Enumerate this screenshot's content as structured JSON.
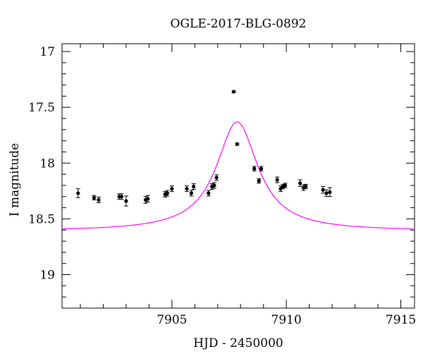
{
  "chart_data": {
    "type": "scatter",
    "title": "OGLE-2017-BLG-0892",
    "xlabel": "HJD - 2450000",
    "ylabel": "I magnitude",
    "xlim": [
      7900.2,
      7915.6
    ],
    "ylim": [
      19.3,
      16.93
    ],
    "y_inverted": true,
    "grid": false,
    "x_major_ticks": [
      7905,
      7910,
      7915
    ],
    "x_tick_labels": [
      "7905",
      "7910",
      "7915"
    ],
    "y_major_ticks": [
      17,
      17.5,
      18,
      18.5,
      19
    ],
    "y_tick_labels": [
      "17",
      "17.5",
      "18",
      "18.5",
      "19"
    ],
    "series": [
      {
        "type": "scatter_errorbars",
        "color": "#000000",
        "points": [
          {
            "x": 7900.9,
            "y": 18.27,
            "err": 0.04
          },
          {
            "x": 7901.6,
            "y": 18.31,
            "err": 0.02
          },
          {
            "x": 7901.8,
            "y": 18.33,
            "err": 0.025
          },
          {
            "x": 7902.7,
            "y": 18.3,
            "err": 0.025
          },
          {
            "x": 7902.8,
            "y": 18.3,
            "err": 0.025
          },
          {
            "x": 7903.0,
            "y": 18.34,
            "err": 0.045
          },
          {
            "x": 7903.85,
            "y": 18.33,
            "err": 0.03
          },
          {
            "x": 7903.95,
            "y": 18.32,
            "err": 0.03
          },
          {
            "x": 7904.7,
            "y": 18.28,
            "err": 0.025
          },
          {
            "x": 7904.8,
            "y": 18.27,
            "err": 0.025
          },
          {
            "x": 7905.0,
            "y": 18.23,
            "err": 0.025
          },
          {
            "x": 7905.65,
            "y": 18.23,
            "err": 0.025
          },
          {
            "x": 7905.85,
            "y": 18.27,
            "err": 0.025
          },
          {
            "x": 7905.95,
            "y": 18.21,
            "err": 0.025
          },
          {
            "x": 7906.6,
            "y": 18.27,
            "err": 0.025
          },
          {
            "x": 7906.75,
            "y": 18.21,
            "err": 0.025
          },
          {
            "x": 7906.85,
            "y": 18.2,
            "err": 0.025
          },
          {
            "x": 7906.95,
            "y": 18.13,
            "err": 0.025
          },
          {
            "x": 7907.7,
            "y": 17.36,
            "err": 0.008
          },
          {
            "x": 7907.85,
            "y": 17.83,
            "err": 0.01
          },
          {
            "x": 7908.6,
            "y": 18.05,
            "err": 0.02
          },
          {
            "x": 7908.8,
            "y": 18.16,
            "err": 0.02
          },
          {
            "x": 7908.9,
            "y": 18.05,
            "err": 0.02
          },
          {
            "x": 7909.6,
            "y": 18.15,
            "err": 0.025
          },
          {
            "x": 7909.75,
            "y": 18.23,
            "err": 0.025
          },
          {
            "x": 7909.85,
            "y": 18.21,
            "err": 0.02
          },
          {
            "x": 7909.95,
            "y": 18.2,
            "err": 0.02
          },
          {
            "x": 7910.6,
            "y": 18.18,
            "err": 0.03
          },
          {
            "x": 7910.75,
            "y": 18.22,
            "err": 0.025
          },
          {
            "x": 7910.85,
            "y": 18.21,
            "err": 0.02
          },
          {
            "x": 7911.6,
            "y": 18.24,
            "err": 0.03
          },
          {
            "x": 7911.75,
            "y": 18.27,
            "err": 0.03
          },
          {
            "x": 7911.9,
            "y": 18.26,
            "err": 0.04
          }
        ]
      },
      {
        "type": "model_curve",
        "color": "#ff00ff",
        "peak_x": 7907.85,
        "peak_mag": 17.63,
        "baseline_mag": 18.61,
        "half_width_days": 1.1
      }
    ]
  }
}
